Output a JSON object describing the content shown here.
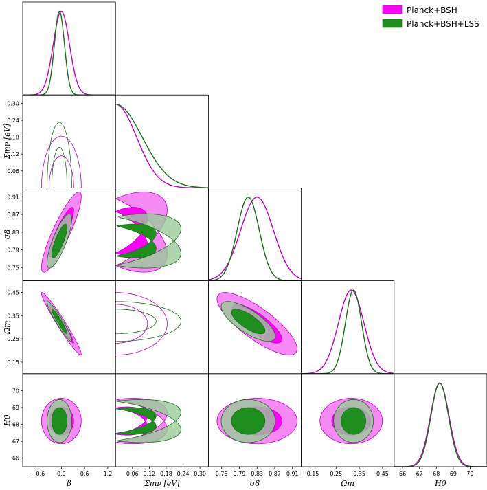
{
  "chart_data": {
    "type": "triangle-corner-plot",
    "parameters": [
      {
        "key": "beta",
        "label": "β",
        "range": [
          -1.0,
          1.4
        ],
        "ticks": [
          -0.6,
          0.0,
          0.6,
          1.2
        ],
        "tick_labels": [
          "−0.6",
          "0.0",
          "0.6",
          "1.2"
        ]
      },
      {
        "key": "mnu",
        "label": "Σmν [eV]",
        "range": [
          0.0,
          0.33
        ],
        "ticks": [
          0.06,
          0.12,
          0.18,
          0.24,
          0.3
        ],
        "tick_labels": [
          "0.06",
          "0.12",
          "0.18",
          "0.24",
          "0.30"
        ]
      },
      {
        "key": "s8",
        "label": "σ8",
        "range": [
          0.72,
          0.93
        ],
        "ticks": [
          0.75,
          0.79,
          0.83,
          0.87,
          0.91
        ],
        "tick_labels": [
          "0.75",
          "0.79",
          "0.83",
          "0.87",
          "0.91"
        ]
      },
      {
        "key": "om",
        "label": "Ωm",
        "range": [
          0.1,
          0.5
        ],
        "ticks": [
          0.15,
          0.25,
          0.35,
          0.45
        ],
        "tick_labels": [
          "0.15",
          "0.25",
          "0.35",
          "0.45"
        ]
      },
      {
        "key": "h0",
        "label": "H0",
        "range": [
          65.5,
          71.0
        ],
        "ticks": [
          66,
          67,
          68,
          69,
          70
        ],
        "tick_labels": [
          "66",
          "67",
          "68",
          "69",
          "70"
        ]
      }
    ],
    "series": [
      {
        "name": "Planck+BSH",
        "color": "#ff00ff",
        "inner_fill": "#ff00ff",
        "outer_fill": "#f47df4",
        "line": "#c000c0",
        "mean": {
          "beta": 0.0,
          "mnu": 0.0,
          "s8": 0.83,
          "om": 0.315,
          "h0": 68.2
        },
        "sigma": {
          "beta": 0.21,
          "mnu": 0.075,
          "s8": 0.037,
          "om": 0.055,
          "h0": 0.55
        },
        "corr": {
          "beta|mnu": 0.0,
          "beta|s8": 0.88,
          "beta|om": -0.97,
          "beta|h0": 0.0,
          "mnu|s8": -0.55,
          "mnu|om": 0.0,
          "mnu|h0": -0.35,
          "s8|om": -0.8,
          "s8|h0": 0.0,
          "om|h0": 0.0
        }
      },
      {
        "name": "Planck+BSH+LSS",
        "color": "#228b22",
        "inner_fill": "#1e8f1e",
        "outer_fill": "#9bcb9b",
        "line": "#1a6f1a",
        "mean": {
          "beta": -0.05,
          "mnu": 0.0,
          "s8": 0.81,
          "om": 0.325,
          "h0": 68.2
        },
        "sigma": {
          "beta": 0.13,
          "mnu": 0.095,
          "s8": 0.025,
          "om": 0.035,
          "h0": 0.52
        },
        "corr": {
          "beta|mnu": 0.0,
          "beta|s8": 0.8,
          "beta|om": -0.95,
          "beta|h0": 0.0,
          "mnu|s8": -0.45,
          "mnu|om": 0.0,
          "mnu|h0": -0.4,
          "s8|om": -0.75,
          "s8|h0": 0.0,
          "om|h0": 0.0
        }
      }
    ],
    "legend": {
      "position": "top-right",
      "entries": [
        "Planck+BSH",
        "Planck+BSH+LSS"
      ]
    }
  }
}
